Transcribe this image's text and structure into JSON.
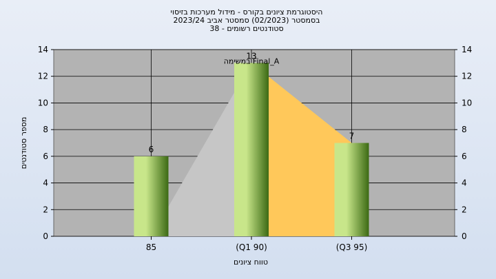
{
  "title_lines": [
    "היסטוגרמת ציונים בקורס - מידול מערכות בזיסוי",
    "בסמסטר  (02/2023)  סמסטר אביב 2023/24",
    "סטודנטים רשומים - 38"
  ],
  "colors": {
    "plot_bg": "#b3b3b3",
    "bar_light": "#c8e68a",
    "bar_dark": "#3c6a14",
    "area_gray": "#c6c6c6",
    "area_yellow": "#ffc85a"
  },
  "chart_data": {
    "type": "bar",
    "title": "היסטוגרמת ציונים בקורס - מידול מערכות בזיסוי",
    "subtitle": "בסמסטר  (02/2023)  סמסטר אביב 2023/24",
    "enrolled_text": "סטודנטים רשומים - 38",
    "xlabel": "טווח ציונים",
    "ylabel": "מספר סטודנטים",
    "ylim": [
      0,
      14
    ],
    "yticks": [
      0,
      2,
      4,
      6,
      8,
      10,
      12,
      14
    ],
    "grid": true,
    "categories": [
      "85",
      "(Q1 90)",
      "(Q3 95)"
    ],
    "values": [
      6,
      13,
      7
    ],
    "data_labels": [
      "6",
      "13",
      "7"
    ],
    "annotation": "במשימה Final_A"
  }
}
